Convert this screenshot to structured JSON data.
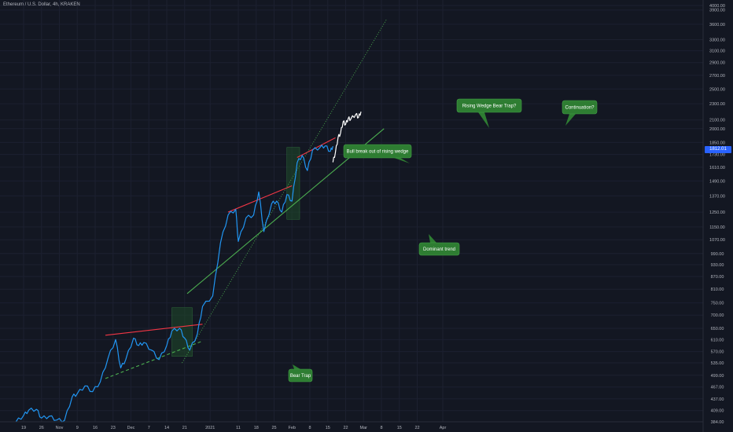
{
  "title": "Ethereum / U.S. Dollar, 4h, KRAKEN",
  "last_price_label": "1812.01",
  "colors": {
    "background": "#131722",
    "price_line": "#2196f3",
    "projection_line": "#ffffff",
    "resistance": "#f23645",
    "support": "#4caf50",
    "zone": "#1f4a2a",
    "callout": "#2e7d32"
  },
  "annotations": [
    {
      "id": "bull-break",
      "text": "Bull break out of rising wedge"
    },
    {
      "id": "rising-wedge",
      "text": "Rising Wedge Bear Trap?"
    },
    {
      "id": "continuation",
      "text": "Continuation?"
    },
    {
      "id": "dominant",
      "text": "Dominant trend"
    },
    {
      "id": "bear-trap",
      "text": "Bear Trap"
    }
  ],
  "chart_data": {
    "type": "line",
    "title": "Ethereum / U.S. Dollar, 4h, KRAKEN",
    "y_scale": "log",
    "ylim": [
      380,
      4100
    ],
    "y_ticks": [
      384.0,
      409.0,
      437.0,
      467.0,
      499.0,
      535.0,
      570.0,
      610.0,
      650.0,
      700.0,
      750.0,
      810.0,
      870.0,
      930.0,
      990.0,
      1070.0,
      1150.0,
      1250.0,
      1370.0,
      1490.0,
      1610.0,
      1730.0,
      1850.0,
      2000.0,
      2100.0,
      2300.0,
      2500.0,
      2700.0,
      2900.0,
      3100.0,
      3300.0,
      3600.0,
      3900.0,
      4000.0
    ],
    "x_ticks": [
      "19",
      "26",
      "Nov",
      "9",
      "16",
      "23",
      "Dec",
      "7",
      "14",
      "21",
      "2021",
      "11",
      "18",
      "25",
      "Feb",
      "8",
      "15",
      "22",
      "Mar",
      "8",
      "15",
      "22",
      "Apr"
    ],
    "series": [
      {
        "values": [
          {
            "x": "2020-10-16",
            "y": 384
          },
          {
            "x": "2020-10-19",
            "y": 398
          },
          {
            "x": "2020-10-21",
            "y": 410
          },
          {
            "x": "2020-10-24",
            "y": 412
          },
          {
            "x": "2020-10-26",
            "y": 392
          },
          {
            "x": "2020-10-29",
            "y": 396
          },
          {
            "x": "2020-11-01",
            "y": 388
          },
          {
            "x": "2020-11-04",
            "y": 387
          },
          {
            "x": "2020-11-07",
            "y": 442
          },
          {
            "x": "2020-11-09",
            "y": 450
          },
          {
            "x": "2020-11-12",
            "y": 470
          },
          {
            "x": "2020-11-15",
            "y": 455
          },
          {
            "x": "2020-11-18",
            "y": 481
          },
          {
            "x": "2020-11-21",
            "y": 549
          },
          {
            "x": "2020-11-24",
            "y": 610
          },
          {
            "x": "2020-11-26",
            "y": 520
          },
          {
            "x": "2020-11-28",
            "y": 546
          },
          {
            "x": "2020-12-01",
            "y": 615
          },
          {
            "x": "2020-12-03",
            "y": 590
          },
          {
            "x": "2020-12-05",
            "y": 600
          },
          {
            "x": "2020-12-08",
            "y": 575
          },
          {
            "x": "2020-12-11",
            "y": 545
          },
          {
            "x": "2020-12-14",
            "y": 590
          },
          {
            "x": "2020-12-16",
            "y": 640
          },
          {
            "x": "2020-12-19",
            "y": 650
          },
          {
            "x": "2020-12-21",
            "y": 615
          },
          {
            "x": "2020-12-23",
            "y": 575
          },
          {
            "x": "2020-12-26",
            "y": 630
          },
          {
            "x": "2020-12-28",
            "y": 735
          },
          {
            "x": "2021-01-01",
            "y": 780
          },
          {
            "x": "2021-01-04",
            "y": 1050
          },
          {
            "x": "2021-01-07",
            "y": 1230
          },
          {
            "x": "2021-01-10",
            "y": 1270
          },
          {
            "x": "2021-01-11",
            "y": 1060
          },
          {
            "x": "2021-01-14",
            "y": 1210
          },
          {
            "x": "2021-01-17",
            "y": 1230
          },
          {
            "x": "2021-01-19",
            "y": 1400
          },
          {
            "x": "2021-01-21",
            "y": 1120
          },
          {
            "x": "2021-01-24",
            "y": 1310
          },
          {
            "x": "2021-01-26",
            "y": 1330
          },
          {
            "x": "2021-01-28",
            "y": 1250
          },
          {
            "x": "2021-01-30",
            "y": 1380
          },
          {
            "x": "2021-02-01",
            "y": 1330
          },
          {
            "x": "2021-02-03",
            "y": 1650
          },
          {
            "x": "2021-02-05",
            "y": 1720
          },
          {
            "x": "2021-02-07",
            "y": 1580
          },
          {
            "x": "2021-02-09",
            "y": 1770
          },
          {
            "x": "2021-02-12",
            "y": 1800
          },
          {
            "x": "2021-02-14",
            "y": 1815
          },
          {
            "x": "2021-02-16",
            "y": 1760
          },
          {
            "x": "2021-02-17",
            "y": 1812
          }
        ]
      },
      {
        "values": [
          {
            "x": "2021-02-17",
            "y": 1655
          },
          {
            "x": "2021-02-18",
            "y": 1750
          },
          {
            "x": "2021-02-19",
            "y": 1900
          },
          {
            "x": "2021-02-20",
            "y": 1950
          },
          {
            "x": "2021-02-21",
            "y": 2080
          },
          {
            "x": "2021-02-22",
            "y": 2050
          },
          {
            "x": "2021-02-23",
            "y": 2120
          },
          {
            "x": "2021-02-24",
            "y": 2110
          },
          {
            "x": "2021-02-26",
            "y": 2170
          },
          {
            "x": "2021-02-27",
            "y": 2130
          },
          {
            "x": "2021-02-28",
            "y": 2200
          }
        ]
      }
    ],
    "lines": [
      {
        "name": "resistance-1",
        "style": "solid",
        "color": "#f23645",
        "from": {
          "x": "2020-11-20",
          "y": 625
        },
        "to": {
          "x": "2020-12-28",
          "y": 665
        }
      },
      {
        "name": "support-1",
        "style": "dashed",
        "color": "#4caf50",
        "from": {
          "x": "2020-11-20",
          "y": 490
        },
        "to": {
          "x": "2020-12-28",
          "y": 605
        }
      },
      {
        "name": "resistance-2",
        "style": "solid",
        "color": "#f23645",
        "from": {
          "x": "2021-01-07",
          "y": 1250
        },
        "to": {
          "x": "2021-02-01",
          "y": 1450
        }
      },
      {
        "name": "resistance-3",
        "style": "solid",
        "color": "#f23645",
        "from": {
          "x": "2021-02-03",
          "y": 1700
        },
        "to": {
          "x": "2021-02-18",
          "y": 1900
        }
      },
      {
        "name": "dominant-trend",
        "style": "solid",
        "color": "#4caf50",
        "from": {
          "x": "2020-12-22",
          "y": 790
        },
        "to": {
          "x": "2021-03-09",
          "y": 2000
        }
      },
      {
        "name": "steep-trend",
        "style": "dotted",
        "color": "#4caf50",
        "from": {
          "x": "2020-12-20",
          "y": 535
        },
        "to": {
          "x": "2021-03-10",
          "y": 3700
        }
      }
    ],
    "zones": [
      {
        "name": "zone-dec",
        "from": {
          "x": "2020-12-16",
          "y": 730
        },
        "to": {
          "x": "2020-12-24",
          "y": 555
        }
      },
      {
        "name": "zone-feb",
        "from": {
          "x": "2021-01-30",
          "y": 1800
        },
        "to": {
          "x": "2021-02-04",
          "y": 1200
        }
      }
    ]
  }
}
